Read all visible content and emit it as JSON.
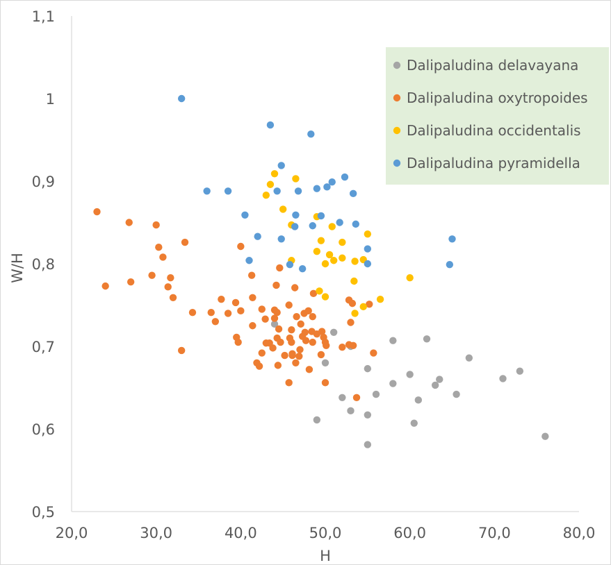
{
  "chart_data": {
    "type": "scatter",
    "title": "",
    "xlabel": "H",
    "ylabel": "W/H",
    "xlim": [
      20,
      80
    ],
    "ylim": [
      0.5,
      1.1
    ],
    "x_ticks": [
      "20,0",
      "30,0",
      "40,0",
      "50,0",
      "60,0",
      "70,0",
      "80,0"
    ],
    "x_tick_values": [
      20,
      30,
      40,
      50,
      60,
      70,
      80
    ],
    "y_ticks": [
      "0,5",
      "0,6",
      "0,7",
      "0,8",
      "0,9",
      "1",
      "1,1"
    ],
    "y_tick_values": [
      0.5,
      0.6,
      0.7,
      0.8,
      0.9,
      1.0,
      1.1
    ],
    "grid": false,
    "legend_position": "top-right",
    "series": [
      {
        "name": "Dalipaludina delavayana",
        "color": "#a5a5a5",
        "points": [
          [
            44.0,
            0.727
          ],
          [
            50.0,
            0.68
          ],
          [
            51.0,
            0.717
          ],
          [
            52.0,
            0.638
          ],
          [
            53.0,
            0.7
          ],
          [
            53.0,
            0.622
          ],
          [
            55.0,
            0.673
          ],
          [
            55.0,
            0.617
          ],
          [
            55.0,
            0.581
          ],
          [
            56.0,
            0.642
          ],
          [
            58.0,
            0.707
          ],
          [
            58.0,
            0.655
          ],
          [
            60.0,
            0.666
          ],
          [
            60.5,
            0.607
          ],
          [
            61.0,
            0.635
          ],
          [
            62.0,
            0.709
          ],
          [
            63.0,
            0.653
          ],
          [
            63.5,
            0.66
          ],
          [
            65.5,
            0.642
          ],
          [
            67.0,
            0.686
          ],
          [
            71.0,
            0.661
          ],
          [
            73.0,
            0.67
          ],
          [
            76.0,
            0.591
          ],
          [
            49.0,
            0.611
          ]
        ]
      },
      {
        "name": "Dalipaludina oxytropoides",
        "color": "#ed7d31",
        "points": [
          [
            23.0,
            0.863
          ],
          [
            24.0,
            0.773
          ],
          [
            26.8,
            0.85
          ],
          [
            27.0,
            0.778
          ],
          [
            29.5,
            0.786
          ],
          [
            30.0,
            0.847
          ],
          [
            30.3,
            0.82
          ],
          [
            30.8,
            0.808
          ],
          [
            31.4,
            0.772
          ],
          [
            31.7,
            0.783
          ],
          [
            32.0,
            0.759
          ],
          [
            33.0,
            0.695
          ],
          [
            33.4,
            0.826
          ],
          [
            34.3,
            0.741
          ],
          [
            36.5,
            0.741
          ],
          [
            37.0,
            0.73
          ],
          [
            37.7,
            0.757
          ],
          [
            38.5,
            0.74
          ],
          [
            39.4,
            0.753
          ],
          [
            39.5,
            0.711
          ],
          [
            39.7,
            0.705
          ],
          [
            40.0,
            0.743
          ],
          [
            40.0,
            0.821
          ],
          [
            41.3,
            0.786
          ],
          [
            41.4,
            0.759
          ],
          [
            41.4,
            0.725
          ],
          [
            41.9,
            0.68
          ],
          [
            42.2,
            0.676
          ],
          [
            42.5,
            0.745
          ],
          [
            42.5,
            0.692
          ],
          [
            42.9,
            0.733
          ],
          [
            43.0,
            0.704
          ],
          [
            43.4,
            0.704
          ],
          [
            43.8,
            0.698
          ],
          [
            44.0,
            0.744
          ],
          [
            44.0,
            0.734
          ],
          [
            44.2,
            0.774
          ],
          [
            44.3,
            0.741
          ],
          [
            44.3,
            0.71
          ],
          [
            44.4,
            0.677
          ],
          [
            44.5,
            0.721
          ],
          [
            44.6,
            0.795
          ],
          [
            44.7,
            0.705
          ],
          [
            45.2,
            0.689
          ],
          [
            45.7,
            0.75
          ],
          [
            45.8,
            0.71
          ],
          [
            45.7,
            0.656
          ],
          [
            46.0,
            0.72
          ],
          [
            46.0,
            0.705
          ],
          [
            46.1,
            0.689
          ],
          [
            46.1,
            0.691
          ],
          [
            46.4,
            0.771
          ],
          [
            46.5,
            0.68
          ],
          [
            46.6,
            0.736
          ],
          [
            46.9,
            0.688
          ],
          [
            47.0,
            0.696
          ],
          [
            47.1,
            0.727
          ],
          [
            47.3,
            0.712
          ],
          [
            47.5,
            0.74
          ],
          [
            47.6,
            0.717
          ],
          [
            47.7,
            0.707
          ],
          [
            48.0,
            0.743
          ],
          [
            48.1,
            0.672
          ],
          [
            48.4,
            0.718
          ],
          [
            48.5,
            0.705
          ],
          [
            48.5,
            0.736
          ],
          [
            48.6,
            0.764
          ],
          [
            49.0,
            0.715
          ],
          [
            49.5,
            0.69
          ],
          [
            49.6,
            0.718
          ],
          [
            49.8,
            0.711
          ],
          [
            50.0,
            0.705
          ],
          [
            50.0,
            0.656
          ],
          [
            50.1,
            0.701
          ],
          [
            52.0,
            0.699
          ],
          [
            52.8,
            0.702
          ],
          [
            52.8,
            0.756
          ],
          [
            53.0,
            0.729
          ],
          [
            53.2,
            0.752
          ],
          [
            53.3,
            0.701
          ],
          [
            53.7,
            0.638
          ],
          [
            55.2,
            0.751
          ],
          [
            55.7,
            0.692
          ]
        ]
      },
      {
        "name": "Dalipaludina occidentalis",
        "color": "#ffc000",
        "points": [
          [
            43.0,
            0.883
          ],
          [
            43.5,
            0.896
          ],
          [
            44.0,
            0.909
          ],
          [
            45.0,
            0.866
          ],
          [
            46.0,
            0.847
          ],
          [
            46.0,
            0.804
          ],
          [
            46.5,
            0.903
          ],
          [
            49.0,
            0.857
          ],
          [
            49.0,
            0.815
          ],
          [
            49.3,
            0.767
          ],
          [
            49.5,
            0.828
          ],
          [
            50.0,
            0.8
          ],
          [
            50.0,
            0.76
          ],
          [
            50.5,
            0.811
          ],
          [
            50.8,
            0.845
          ],
          [
            51.0,
            0.804
          ],
          [
            52.0,
            0.826
          ],
          [
            52.0,
            0.807
          ],
          [
            53.4,
            0.779
          ],
          [
            53.5,
            0.803
          ],
          [
            53.5,
            0.74
          ],
          [
            54.5,
            0.805
          ],
          [
            54.5,
            0.748
          ],
          [
            55.0,
            0.836
          ],
          [
            56.5,
            0.757
          ],
          [
            60.0,
            0.783
          ]
        ]
      },
      {
        "name": "Dalipaludina pyramidella",
        "color": "#5b9bd5",
        "points": [
          [
            33.0,
            1.0
          ],
          [
            36.0,
            0.888
          ],
          [
            38.5,
            0.888
          ],
          [
            40.5,
            0.859
          ],
          [
            41.0,
            0.804
          ],
          [
            42.0,
            0.833
          ],
          [
            43.5,
            0.968
          ],
          [
            44.3,
            0.888
          ],
          [
            44.8,
            0.919
          ],
          [
            44.8,
            0.83
          ],
          [
            45.8,
            0.799
          ],
          [
            46.4,
            0.845
          ],
          [
            46.5,
            0.859
          ],
          [
            46.8,
            0.888
          ],
          [
            47.3,
            0.794
          ],
          [
            48.3,
            0.957
          ],
          [
            48.5,
            0.846
          ],
          [
            49.0,
            0.891
          ],
          [
            49.5,
            0.858
          ],
          [
            50.2,
            0.893
          ],
          [
            50.8,
            0.899
          ],
          [
            51.7,
            0.85
          ],
          [
            52.3,
            0.905
          ],
          [
            53.3,
            0.885
          ],
          [
            53.6,
            0.848
          ],
          [
            55.0,
            0.818
          ],
          [
            55.0,
            0.8
          ],
          [
            64.7,
            0.799
          ],
          [
            65.0,
            0.83
          ]
        ]
      }
    ]
  }
}
